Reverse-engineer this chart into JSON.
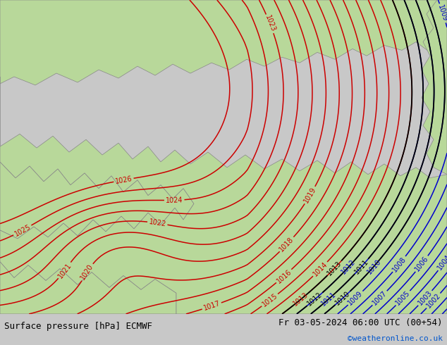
{
  "title_left": "Surface pressure [hPa] ECMWF",
  "title_right": "Fr 03-05-2024 06:00 UTC (00+54)",
  "watermark": "©weatheronline.co.uk",
  "sea_color": "#c8d4dc",
  "land_color": "#b8d89a",
  "contour_color_red": "#cc0000",
  "contour_color_blue": "#0000cc",
  "contour_color_black": "#000000",
  "coast_color": "#888888",
  "label_fontsize": 7,
  "footer_fontsize": 9,
  "watermark_color": "#0055cc",
  "footer_bg": "#ffffff",
  "green_line_color": "#00bb00",
  "fig_bg": "#c8c8c8"
}
